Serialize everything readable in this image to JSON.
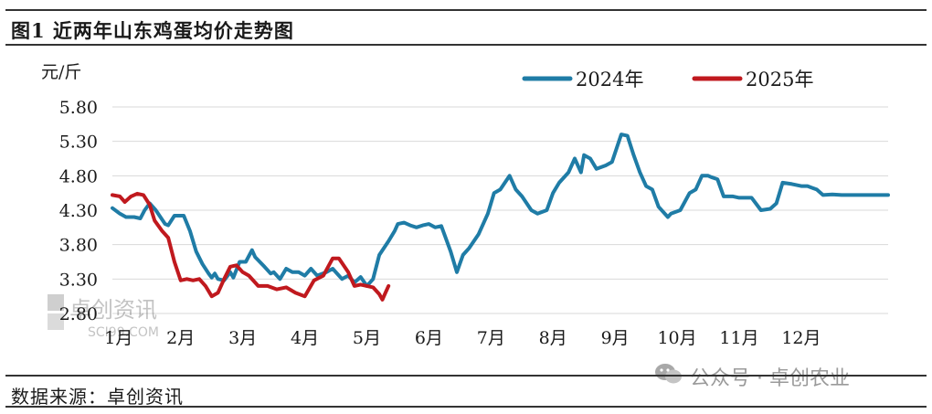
{
  "header": {
    "title": "图1  近两年山东鸡蛋均价走势图"
  },
  "footer": {
    "source": "数据来源：卓创资讯"
  },
  "watermark": {
    "logo_text": "卓创资讯",
    "logo_sub": "SCI99.COM",
    "wechat_text": "公众号 · 卓创农业",
    "wechat_icon": "wechat-icon"
  },
  "chart_data": {
    "type": "line",
    "title": "",
    "ylabel": "元/斤",
    "ylim": [
      2.8,
      5.8
    ],
    "yticks": [
      5.8,
      5.3,
      4.8,
      4.3,
      3.8,
      3.3,
      2.8
    ],
    "ytick_labels": [
      "5.80",
      "5.30",
      "4.80",
      "4.30",
      "3.80",
      "3.30",
      "2.80"
    ],
    "xlim": [
      0,
      12.5
    ],
    "xticks": [
      0.1,
      1.1,
      2.1,
      3.1,
      4.1,
      5.1,
      6.1,
      7.1,
      8.1,
      9.1,
      10.1,
      11.1
    ],
    "xtick_labels": [
      "1月",
      "2月",
      "3月",
      "4月",
      "5月",
      "6月",
      "7月",
      "8月",
      "9月",
      "10月",
      "11月",
      "12月"
    ],
    "grid": "horizontal",
    "legend_position": "top-right",
    "series": [
      {
        "name": "2024年",
        "color": "#1f7ca6",
        "x": [
          0.0,
          0.12,
          0.22,
          0.35,
          0.45,
          0.52,
          0.6,
          0.7,
          0.85,
          0.9,
          1.0,
          1.1,
          1.15,
          1.25,
          1.35,
          1.45,
          1.55,
          1.6,
          1.65,
          1.7,
          1.8,
          1.9,
          1.95,
          2.05,
          2.15,
          2.25,
          2.3,
          2.45,
          2.55,
          2.6,
          2.7,
          2.8,
          2.9,
          3.0,
          3.1,
          3.2,
          3.3,
          3.45,
          3.55,
          3.7,
          3.8,
          3.9,
          4.0,
          4.1,
          4.2,
          4.3,
          4.45,
          4.55,
          4.6,
          4.7,
          4.8,
          4.9,
          5.0,
          5.1,
          5.2,
          5.3,
          5.45,
          5.55,
          5.65,
          5.75,
          5.9,
          6.0,
          6.05,
          6.15,
          6.25,
          6.4,
          6.5,
          6.6,
          6.75,
          6.85,
          7.0,
          7.1,
          7.2,
          7.35,
          7.45,
          7.55,
          7.6,
          7.7,
          7.8,
          7.95,
          8.05,
          8.2,
          8.3,
          8.4,
          8.5,
          8.6,
          8.7,
          8.8,
          8.95,
          9.0,
          9.15,
          9.3,
          9.4,
          9.5,
          9.6,
          9.65,
          9.75,
          9.85,
          10.0,
          10.1,
          10.15,
          10.3,
          10.45,
          10.6,
          10.7,
          10.8,
          10.95,
          11.1,
          11.2,
          11.35,
          11.45,
          11.6,
          11.75,
          11.85,
          12.0,
          12.15,
          12.25,
          12.4,
          12.5
        ],
        "y": [
          4.33,
          4.25,
          4.2,
          4.2,
          4.18,
          4.3,
          4.4,
          4.3,
          4.1,
          4.08,
          4.22,
          4.22,
          4.22,
          4.0,
          3.7,
          3.52,
          3.38,
          3.32,
          3.38,
          3.3,
          3.28,
          3.4,
          3.32,
          3.55,
          3.55,
          3.72,
          3.62,
          3.48,
          3.38,
          3.4,
          3.3,
          3.45,
          3.4,
          3.4,
          3.35,
          3.45,
          3.35,
          3.4,
          3.45,
          3.3,
          3.35,
          3.25,
          3.33,
          3.2,
          3.3,
          3.65,
          3.85,
          4.0,
          4.1,
          4.12,
          4.08,
          4.05,
          4.08,
          4.1,
          4.05,
          4.07,
          3.7,
          3.4,
          3.65,
          3.75,
          3.95,
          4.15,
          4.25,
          4.55,
          4.6,
          4.8,
          4.6,
          4.5,
          4.3,
          4.25,
          4.3,
          4.55,
          4.7,
          4.85,
          5.05,
          4.85,
          5.1,
          5.05,
          4.9,
          4.95,
          5.0,
          5.4,
          5.38,
          5.1,
          4.85,
          4.65,
          4.6,
          4.35,
          4.2,
          4.25,
          4.3,
          4.55,
          4.6,
          4.8,
          4.8,
          4.78,
          4.75,
          4.5,
          4.5,
          4.48,
          4.48,
          4.48,
          4.3,
          4.32,
          4.4,
          4.7,
          4.68,
          4.65,
          4.65,
          4.6,
          4.52,
          4.53,
          4.52,
          4.52,
          4.52,
          4.52,
          4.52,
          4.52,
          4.52
        ]
      },
      {
        "name": "2025年",
        "color": "#c0191e",
        "x": [
          0.0,
          0.12,
          0.2,
          0.3,
          0.4,
          0.5,
          0.6,
          0.68,
          0.8,
          0.9,
          1.0,
          1.1,
          1.2,
          1.3,
          1.4,
          1.5,
          1.6,
          1.7,
          1.8,
          1.9,
          2.0,
          2.1,
          2.2,
          2.35,
          2.5,
          2.65,
          2.8,
          2.95,
          3.1,
          3.25,
          3.4,
          3.55,
          3.65,
          3.8,
          3.9,
          4.0,
          4.1,
          4.2,
          4.3,
          4.35,
          4.4,
          4.45
        ],
        "y": [
          4.52,
          4.5,
          4.42,
          4.5,
          4.54,
          4.52,
          4.38,
          4.15,
          4.0,
          3.9,
          3.55,
          3.28,
          3.3,
          3.28,
          3.3,
          3.2,
          3.05,
          3.1,
          3.3,
          3.48,
          3.5,
          3.4,
          3.35,
          3.2,
          3.2,
          3.15,
          3.18,
          3.1,
          3.05,
          3.28,
          3.35,
          3.6,
          3.6,
          3.4,
          3.2,
          3.22,
          3.2,
          3.18,
          3.08,
          3.0,
          3.1,
          3.2
        ]
      }
    ]
  }
}
